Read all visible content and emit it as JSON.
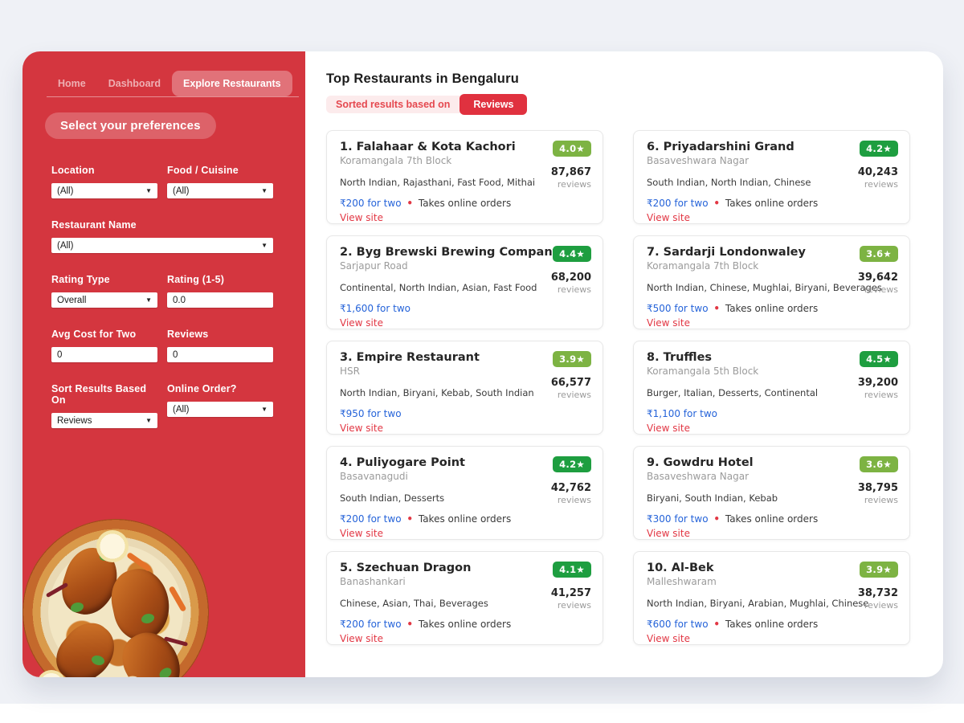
{
  "colors": {
    "sidebar_red": "#d4363f",
    "accent_red": "#e23744",
    "chip_red": "#e0313f",
    "price_blue": "#2563d9",
    "badge_dark_green": "#1e9e40",
    "badge_light_green": "#7db343",
    "page_bg": "#eff1f6"
  },
  "sidebar": {
    "tabs": [
      {
        "label": "Home",
        "active": false
      },
      {
        "label": "Dashboard",
        "active": false
      },
      {
        "label": "Explore Restaurants",
        "active": true
      }
    ],
    "heading": "Select your preferences",
    "filters": {
      "location": {
        "label": "Location",
        "value": "(All)"
      },
      "cuisine": {
        "label": "Food / Cuisine",
        "value": "(All)"
      },
      "restaurant_name": {
        "label": "Restaurant Name",
        "value": "(All)"
      },
      "rating_type": {
        "label": "Rating Type",
        "value": "Overall"
      },
      "rating": {
        "label": "Rating (1-5)",
        "value": "0.0"
      },
      "avg_cost": {
        "label": "Avg Cost for Two",
        "value": "0"
      },
      "reviews": {
        "label": "Reviews",
        "value": "0"
      },
      "sort_by": {
        "label": "Sort Results Based On",
        "value": "Reviews"
      },
      "online_order": {
        "label": "Online Order?",
        "value": "(All)"
      }
    }
  },
  "header": {
    "title": "Top Restaurants in Bengaluru",
    "sorted_label": "Sorted results based on",
    "sorted_value": "Reviews"
  },
  "restaurants": [
    {
      "name": "1. Falahaar & Kota Kachori",
      "area": "Koramangala 7th Block",
      "rating": "4.0★",
      "badge_color": "#7db343",
      "reviews": "87,867",
      "reviews_label": "reviews",
      "cuisines": "North Indian, Rajasthani, Fast Food, Mithai",
      "price": "₹200 for two",
      "dot": "•",
      "online": "Takes online orders",
      "link": "View site"
    },
    {
      "name": "2. Byg Brewski Brewing Company",
      "area": "Sarjapur Road",
      "rating": "4.4★",
      "badge_color": "#1e9e40",
      "reviews": "68,200",
      "reviews_label": "reviews",
      "cuisines": "Continental, North Indian, Asian, Fast Food",
      "price": "₹1,600 for two",
      "dot": "",
      "online": "",
      "link": "View site"
    },
    {
      "name": "3. Empire Restaurant",
      "area": "HSR",
      "rating": "3.9★",
      "badge_color": "#7db343",
      "reviews": "66,577",
      "reviews_label": "reviews",
      "cuisines": "North Indian, Biryani, Kebab, South Indian",
      "price": "₹950 for two",
      "dot": "",
      "online": "",
      "link": "View site"
    },
    {
      "name": "4. Puliyogare Point",
      "area": "Basavanagudi",
      "rating": "4.2★",
      "badge_color": "#1e9e40",
      "reviews": "42,762",
      "reviews_label": "reviews",
      "cuisines": "South Indian, Desserts",
      "price": "₹200 for two",
      "dot": "•",
      "online": "Takes online orders",
      "link": "View site"
    },
    {
      "name": "5. Szechuan Dragon",
      "area": "Banashankari",
      "rating": "4.1★",
      "badge_color": "#1e9e40",
      "reviews": "41,257",
      "reviews_label": "reviews",
      "cuisines": "Chinese, Asian, Thai, Beverages",
      "price": "₹200 for two",
      "dot": "•",
      "online": "Takes online orders",
      "link": "View site"
    },
    {
      "name": "6. Priyadarshini Grand",
      "area": "Basaveshwara Nagar",
      "rating": "4.2★",
      "badge_color": "#1e9e40",
      "reviews": "40,243",
      "reviews_label": "reviews",
      "cuisines": "South Indian, North Indian, Chinese",
      "price": "₹200 for two",
      "dot": "•",
      "online": "Takes online orders",
      "link": "View site"
    },
    {
      "name": "7. Sardarji Londonwaley",
      "area": "Koramangala 7th Block",
      "rating": "3.6★",
      "badge_color": "#7db343",
      "reviews": "39,642",
      "reviews_label": "reviews",
      "cuisines": "North Indian, Chinese, Mughlai, Biryani, Beverages",
      "price": "₹500 for two",
      "dot": "•",
      "online": "Takes online orders",
      "link": "View site"
    },
    {
      "name": "8. Truffles",
      "area": "Koramangala 5th Block",
      "rating": "4.5★",
      "badge_color": "#1e9e40",
      "reviews": "39,200",
      "reviews_label": "reviews",
      "cuisines": "Burger, Italian, Desserts, Continental",
      "price": "₹1,100 for two",
      "dot": "",
      "online": "",
      "link": "View site"
    },
    {
      "name": "9. Gowdru Hotel",
      "area": "Basaveshwara Nagar",
      "rating": "3.6★",
      "badge_color": "#7db343",
      "reviews": "38,795",
      "reviews_label": "reviews",
      "cuisines": "Biryani, South Indian, Kebab",
      "price": "₹300 for two",
      "dot": "•",
      "online": "Takes online orders",
      "link": "View site"
    },
    {
      "name": "10. Al-Bek",
      "area": "Malleshwaram",
      "rating": "3.9★",
      "badge_color": "#7db343",
      "reviews": "38,732",
      "reviews_label": "reviews",
      "cuisines": "North Indian, Biryani, Arabian, Mughlai, Chinese",
      "price": "₹600 for two",
      "dot": "•",
      "online": "Takes online orders",
      "link": "View site"
    }
  ]
}
